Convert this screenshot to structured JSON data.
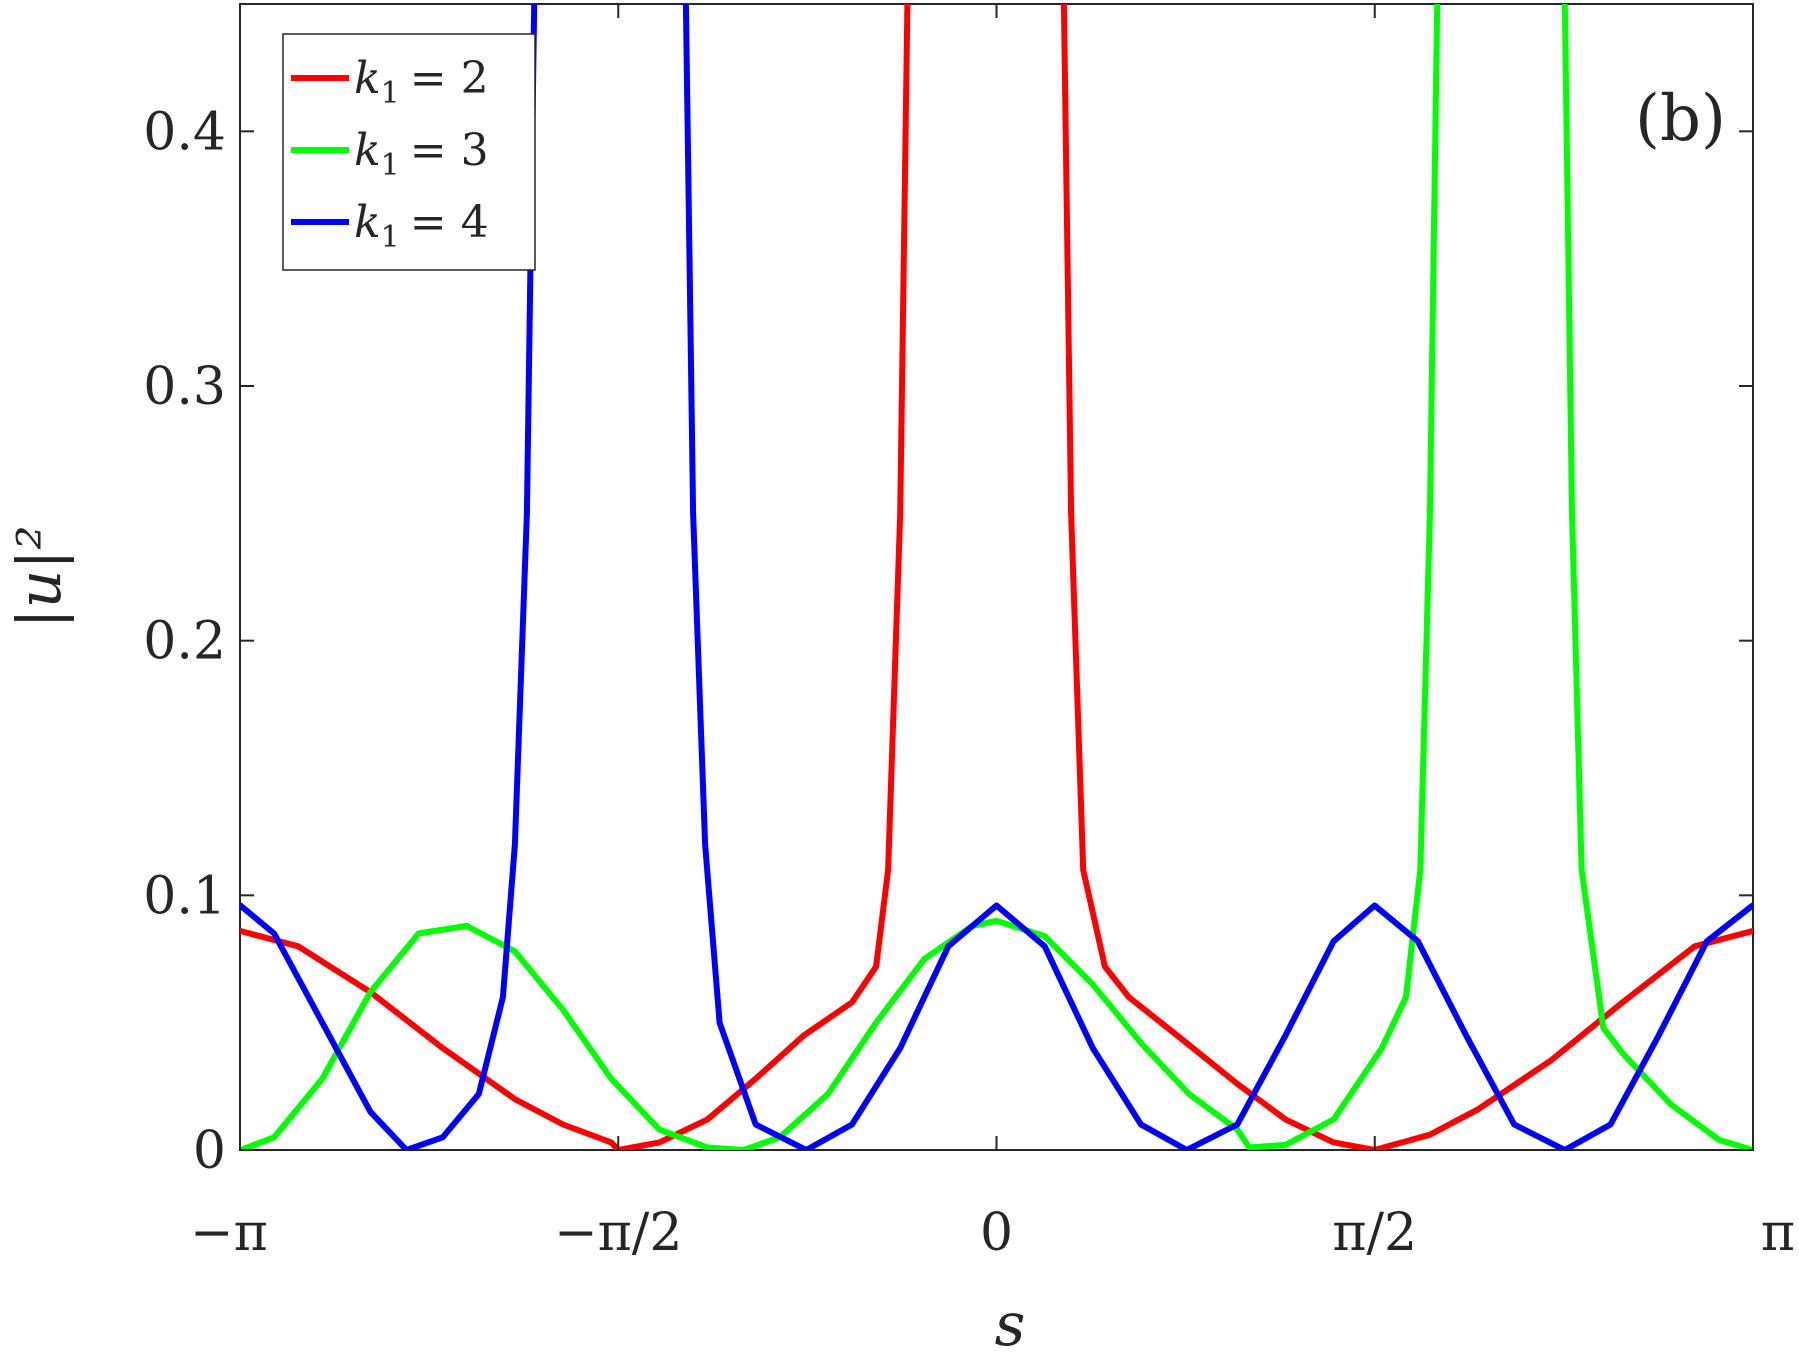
{
  "chart_data": {
    "type": "line",
    "panel_label": "(b)",
    "xlabel": "s",
    "ylabel": "|u|²",
    "xlim": [
      -3.14159,
      3.14159
    ],
    "ylim": [
      0,
      0.45
    ],
    "x_ticks": [
      {
        "value": -3.14159,
        "label": "−π"
      },
      {
        "value": -1.5708,
        "label": "−π/2"
      },
      {
        "value": 0,
        "label": "0"
      },
      {
        "value": 1.5708,
        "label": "π/2"
      },
      {
        "value": 3.14159,
        "label": "π"
      }
    ],
    "y_ticks": [
      {
        "value": 0,
        "label": "0"
      },
      {
        "value": 0.1,
        "label": "0.1"
      },
      {
        "value": 0.2,
        "label": "0.2"
      },
      {
        "value": 0.3,
        "label": "0.3"
      },
      {
        "value": 0.4,
        "label": "0.4"
      }
    ],
    "grid": false,
    "legend_position": "top-left",
    "series": [
      {
        "name": "k1 = 2",
        "legend_sym": "k",
        "legend_sub": "1",
        "legend_eq": "= 2",
        "color": "#ff0000",
        "points": [
          [
            -3.14,
            0.086
          ],
          [
            -2.9,
            0.08
          ],
          [
            -2.6,
            0.062
          ],
          [
            -2.3,
            0.04
          ],
          [
            -2.0,
            0.02
          ],
          [
            -1.8,
            0.01
          ],
          [
            -1.6,
            0.003
          ],
          [
            -1.57,
            0.0
          ],
          [
            -1.4,
            0.003
          ],
          [
            -1.2,
            0.012
          ],
          [
            -1.0,
            0.028
          ],
          [
            -0.8,
            0.045
          ],
          [
            -0.6,
            0.058
          ],
          [
            -0.5,
            0.072
          ],
          [
            -0.45,
            0.11
          ],
          [
            -0.4,
            0.25
          ],
          [
            -0.37,
            0.45
          ],
          [
            null,
            null
          ],
          [
            0.28,
            0.45
          ],
          [
            0.31,
            0.25
          ],
          [
            0.36,
            0.11
          ],
          [
            0.45,
            0.072
          ],
          [
            0.55,
            0.06
          ],
          [
            0.75,
            0.045
          ],
          [
            1.0,
            0.026
          ],
          [
            1.2,
            0.012
          ],
          [
            1.4,
            0.003
          ],
          [
            1.57,
            0.0
          ],
          [
            1.8,
            0.006
          ],
          [
            2.0,
            0.016
          ],
          [
            2.3,
            0.035
          ],
          [
            2.6,
            0.058
          ],
          [
            2.9,
            0.08
          ],
          [
            3.14,
            0.086
          ]
        ]
      },
      {
        "name": "k1 = 3",
        "legend_sym": "k",
        "legend_sub": "1",
        "legend_eq": "= 3",
        "color": "#00ff00",
        "points": [
          [
            -3.14,
            0.0
          ],
          [
            -3.0,
            0.005
          ],
          [
            -2.8,
            0.028
          ],
          [
            -2.6,
            0.062
          ],
          [
            -2.4,
            0.085
          ],
          [
            -2.2,
            0.088
          ],
          [
            -2.0,
            0.078
          ],
          [
            -1.8,
            0.055
          ],
          [
            -1.6,
            0.028
          ],
          [
            -1.4,
            0.008
          ],
          [
            -1.2,
            0.001
          ],
          [
            -1.05,
            0.0
          ],
          [
            -0.9,
            0.005
          ],
          [
            -0.7,
            0.022
          ],
          [
            -0.5,
            0.05
          ],
          [
            -0.3,
            0.075
          ],
          [
            -0.1,
            0.088
          ],
          [
            0.0,
            0.09
          ],
          [
            0.2,
            0.084
          ],
          [
            0.4,
            0.065
          ],
          [
            0.6,
            0.042
          ],
          [
            0.8,
            0.022
          ],
          [
            1.0,
            0.008
          ],
          [
            1.05,
            0.001
          ],
          [
            1.2,
            0.002
          ],
          [
            1.4,
            0.012
          ],
          [
            1.6,
            0.04
          ],
          [
            1.7,
            0.06
          ],
          [
            1.76,
            0.11
          ],
          [
            1.8,
            0.25
          ],
          [
            1.83,
            0.45
          ],
          [
            null,
            null
          ],
          [
            2.36,
            0.45
          ],
          [
            2.39,
            0.25
          ],
          [
            2.43,
            0.11
          ],
          [
            2.52,
            0.048
          ],
          [
            2.6,
            0.038
          ],
          [
            2.8,
            0.018
          ],
          [
            3.0,
            0.004
          ],
          [
            3.14,
            0.0
          ]
        ]
      },
      {
        "name": "k1 = 4",
        "legend_sym": "k",
        "legend_sub": "1",
        "legend_eq": "= 4",
        "color": "#0000ff",
        "points": [
          [
            -3.14,
            0.096
          ],
          [
            -3.0,
            0.085
          ],
          [
            -2.8,
            0.05
          ],
          [
            -2.6,
            0.015
          ],
          [
            -2.45,
            0.0
          ],
          [
            -2.3,
            0.005
          ],
          [
            -2.15,
            0.022
          ],
          [
            -2.05,
            0.06
          ],
          [
            -2.0,
            0.12
          ],
          [
            -1.95,
            0.25
          ],
          [
            -1.92,
            0.45
          ],
          [
            null,
            null
          ],
          [
            -1.29,
            0.45
          ],
          [
            -1.26,
            0.25
          ],
          [
            -1.21,
            0.12
          ],
          [
            -1.15,
            0.05
          ],
          [
            -1.0,
            0.01
          ],
          [
            -0.79,
            0.0
          ],
          [
            -0.6,
            0.01
          ],
          [
            -0.4,
            0.04
          ],
          [
            -0.2,
            0.08
          ],
          [
            0.0,
            0.096
          ],
          [
            0.2,
            0.08
          ],
          [
            0.4,
            0.04
          ],
          [
            0.6,
            0.01
          ],
          [
            0.79,
            0.0
          ],
          [
            1.0,
            0.01
          ],
          [
            1.2,
            0.045
          ],
          [
            1.4,
            0.082
          ],
          [
            1.57,
            0.096
          ],
          [
            1.75,
            0.082
          ],
          [
            1.95,
            0.045
          ],
          [
            2.15,
            0.01
          ],
          [
            2.36,
            0.0
          ],
          [
            2.55,
            0.01
          ],
          [
            2.75,
            0.045
          ],
          [
            2.95,
            0.082
          ],
          [
            3.14,
            0.096
          ]
        ]
      }
    ]
  }
}
